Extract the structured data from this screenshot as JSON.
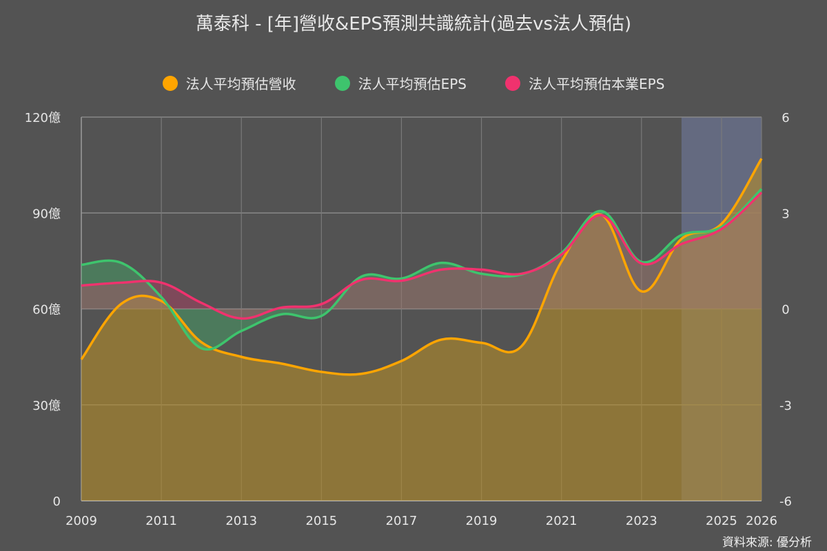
{
  "chart_data": {
    "type": "line",
    "title": "萬泰科 - [年]營收&EPS預測共識統計(過去vs法人預估)",
    "x": [
      2009,
      2010,
      2011,
      2012,
      2013,
      2014,
      2015,
      2016,
      2017,
      2018,
      2019,
      2020,
      2021,
      2022,
      2023,
      2024,
      2025,
      2026
    ],
    "x_tick_labels": [
      "2009",
      "2011",
      "2013",
      "2015",
      "2017",
      "2019",
      "2021",
      "2023",
      "2025",
      "2026"
    ],
    "left_axis": {
      "unit": "億",
      "ylim": [
        0,
        120
      ],
      "tick_labels": [
        "0",
        "30億",
        "60億",
        "90億",
        "120億"
      ]
    },
    "right_axis": {
      "ylim": [
        -6,
        6
      ],
      "tick_labels": [
        "-6",
        "-3",
        "0",
        "3",
        "6"
      ]
    },
    "forecast_range": [
      2024,
      2026
    ],
    "grid": true,
    "legend_position": "top",
    "series": [
      {
        "name": "法人平均預估營收",
        "axis": "left",
        "color": "#ffa500",
        "values": [
          44.2,
          61.6,
          62.5,
          49.6,
          45.0,
          42.9,
          40.3,
          39.7,
          43.7,
          50.4,
          49.4,
          48.3,
          74.8,
          89.4,
          65.5,
          81.9,
          86.6,
          107.0
        ]
      },
      {
        "name": "法人平均預估EPS",
        "axis": "right",
        "color": "#3ec46d",
        "values": [
          1.38,
          1.44,
          0.37,
          -1.23,
          -0.69,
          -0.17,
          -0.22,
          1.01,
          0.95,
          1.44,
          1.1,
          1.08,
          1.75,
          3.06,
          1.47,
          2.31,
          2.56,
          3.75
        ]
      },
      {
        "name": "法人平均預估本業EPS",
        "axis": "right",
        "color": "#f0326e",
        "values": [
          0.73,
          0.82,
          0.82,
          0.19,
          -0.3,
          0.04,
          0.15,
          0.91,
          0.88,
          1.23,
          1.23,
          1.1,
          1.7,
          2.93,
          1.42,
          2.03,
          2.5,
          3.64
        ]
      }
    ]
  },
  "source": "資料來源: 優分析"
}
